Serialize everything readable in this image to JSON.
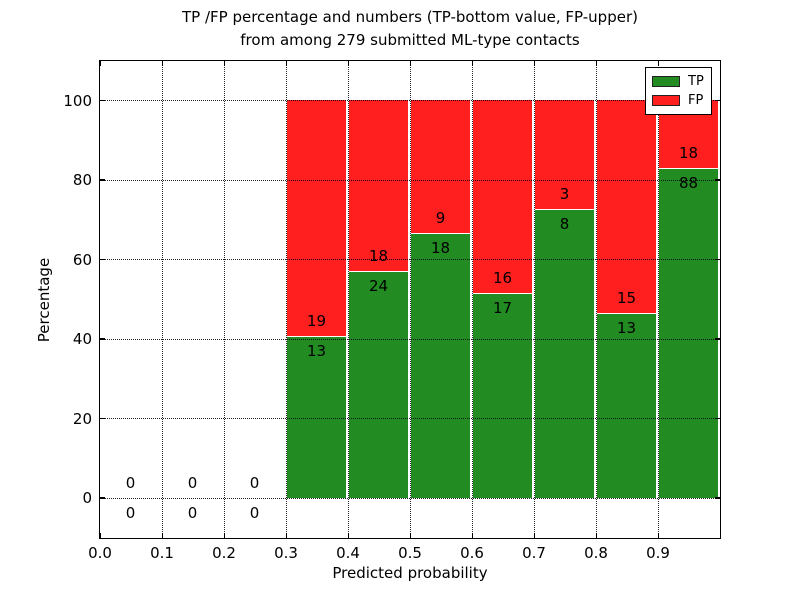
{
  "figure": {
    "title_line1": "TP /FP percentage and numbers (TP-bottom value, FP-upper)",
    "title_line2": "from among 279 submitted ML-type contacts"
  },
  "chart_data": {
    "type": "bar",
    "subtype": "stacked-100-percent",
    "title": "TP /FP percentage and numbers (TP-bottom value, FP-upper) from among 279 submitted ML-type contacts",
    "xlabel": "Predicted probability",
    "ylabel": "Percentage",
    "xlim": [
      0.0,
      1.0
    ],
    "ylim": [
      -10,
      110
    ],
    "xticks": [
      0.0,
      0.1,
      0.2,
      0.3,
      0.4,
      0.5,
      0.6,
      0.7,
      0.8,
      0.9
    ],
    "xtick_labels": [
      "0.0",
      "0.1",
      "0.2",
      "0.3",
      "0.4",
      "0.5",
      "0.6",
      "0.7",
      "0.8",
      "0.9"
    ],
    "yticks": [
      0,
      20,
      40,
      60,
      80,
      100
    ],
    "ytick_labels": [
      "0",
      "20",
      "40",
      "60",
      "80",
      "100"
    ],
    "grid": true,
    "grid_style": "dotted",
    "legend_position": "upper-right",
    "total_contacts": 279,
    "series": [
      {
        "name": "TP",
        "color": "#228b22"
      },
      {
        "name": "FP",
        "color": "#ff1f1f"
      }
    ],
    "bins": [
      {
        "range": [
          0.0,
          0.1
        ],
        "tp": 0,
        "fp": 0
      },
      {
        "range": [
          0.1,
          0.2
        ],
        "tp": 0,
        "fp": 0
      },
      {
        "range": [
          0.2,
          0.3
        ],
        "tp": 0,
        "fp": 0
      },
      {
        "range": [
          0.3,
          0.4
        ],
        "tp": 13,
        "fp": 19
      },
      {
        "range": [
          0.4,
          0.5
        ],
        "tp": 24,
        "fp": 18
      },
      {
        "range": [
          0.5,
          0.6
        ],
        "tp": 18,
        "fp": 9
      },
      {
        "range": [
          0.6,
          0.7
        ],
        "tp": 17,
        "fp": 16
      },
      {
        "range": [
          0.7,
          0.8
        ],
        "tp": 8,
        "fp": 3
      },
      {
        "range": [
          0.8,
          0.9
        ],
        "tp": 13,
        "fp": 15
      },
      {
        "range": [
          0.9,
          1.0
        ],
        "tp": 88,
        "fp": 18
      }
    ]
  }
}
